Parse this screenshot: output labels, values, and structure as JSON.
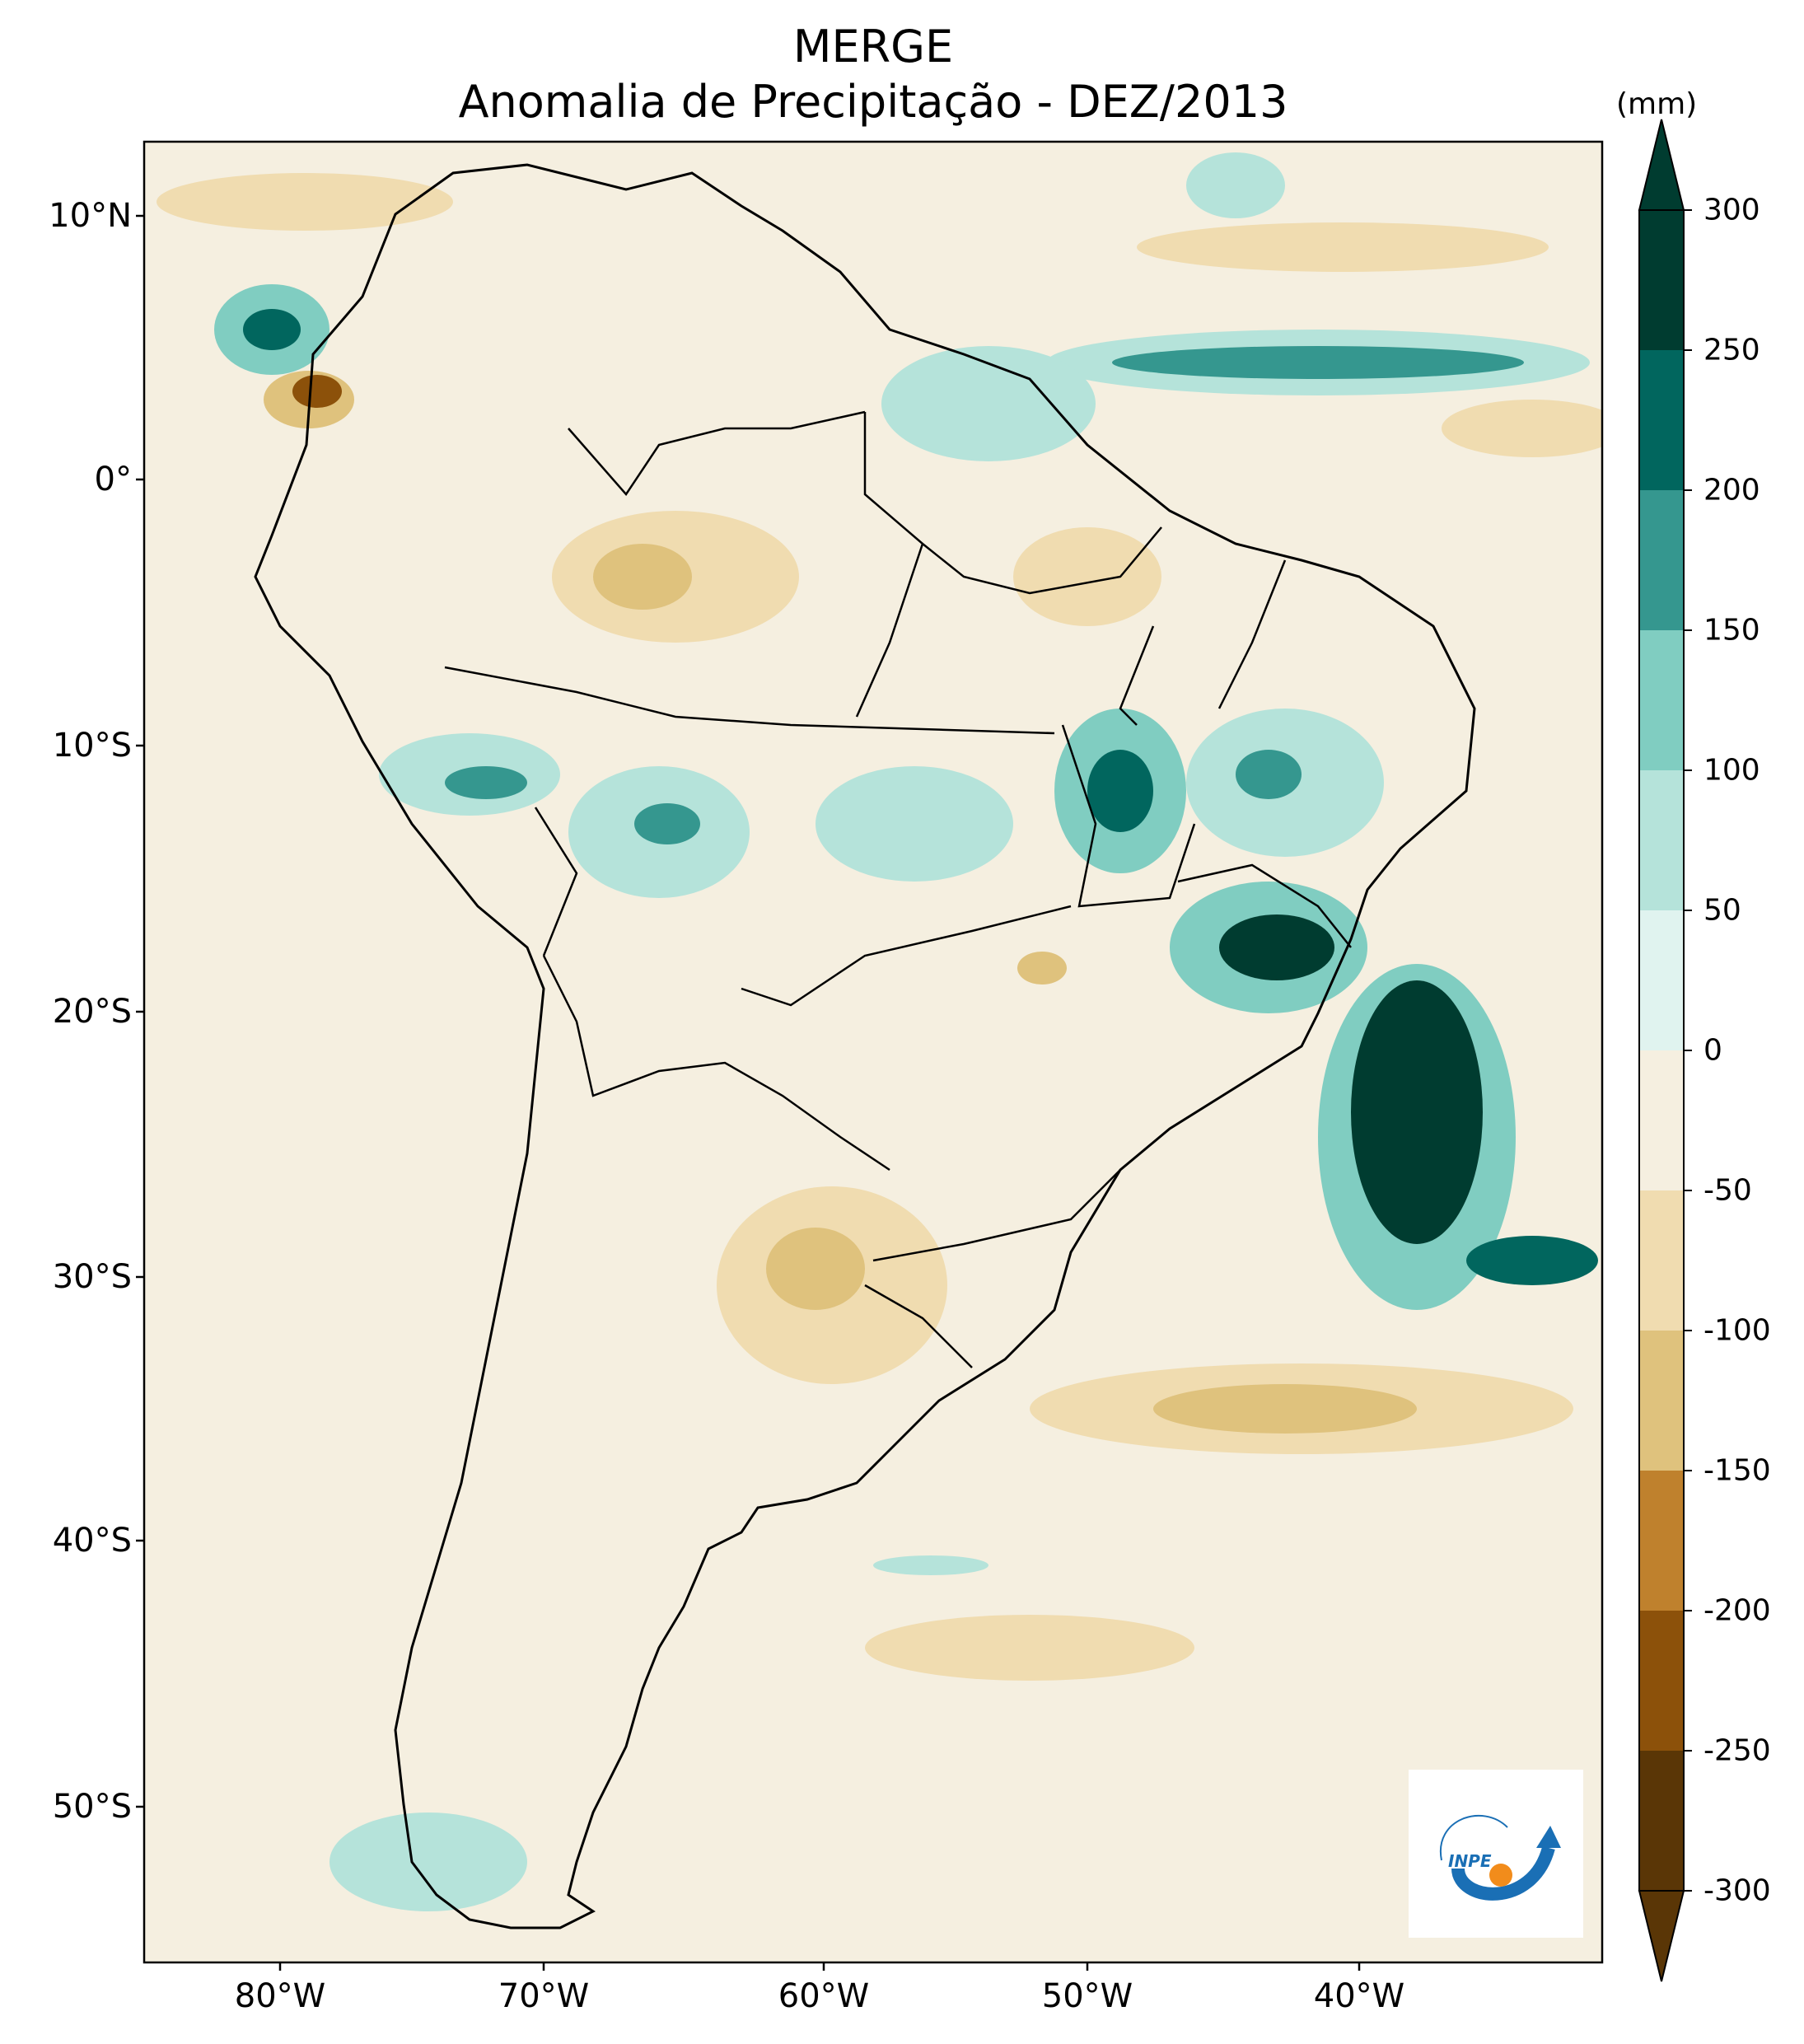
{
  "title": "MERGE",
  "subtitle": "Anomalia de Precipitação - DEZ/2013",
  "colorbar": {
    "unit": "(mm)",
    "ticks": [
      "300",
      "250",
      "200",
      "150",
      "100",
      "50",
      "0",
      "-50",
      "-100",
      "-150",
      "-200",
      "-250",
      "-300"
    ],
    "levels": [
      -300,
      -250,
      -200,
      -150,
      -100,
      -50,
      0,
      50,
      100,
      150,
      200,
      250,
      300
    ],
    "colors": [
      "#5a3606",
      "#8c510a",
      "#bf812d",
      "#dfc27d",
      "#f0dcb0",
      "#f5efe0",
      "#e0f3ef",
      "#b5e3da",
      "#80cdc1",
      "#35978f",
      "#01665e",
      "#003c30"
    ]
  },
  "axes": {
    "lat_labels": [
      "10°N",
      "0°",
      "10°S",
      "20°S",
      "30°S",
      "40°S",
      "50°S"
    ],
    "lon_labels": [
      "80°W",
      "70°W",
      "60°W",
      "50°W",
      "40°W"
    ]
  },
  "logo": {
    "text": "INPE",
    "colors": {
      "blue": "#1a6fb5",
      "orange": "#f28c1b"
    }
  },
  "map": {
    "ocean_fill": "#f5efe0",
    "coast_color": "#000000"
  }
}
